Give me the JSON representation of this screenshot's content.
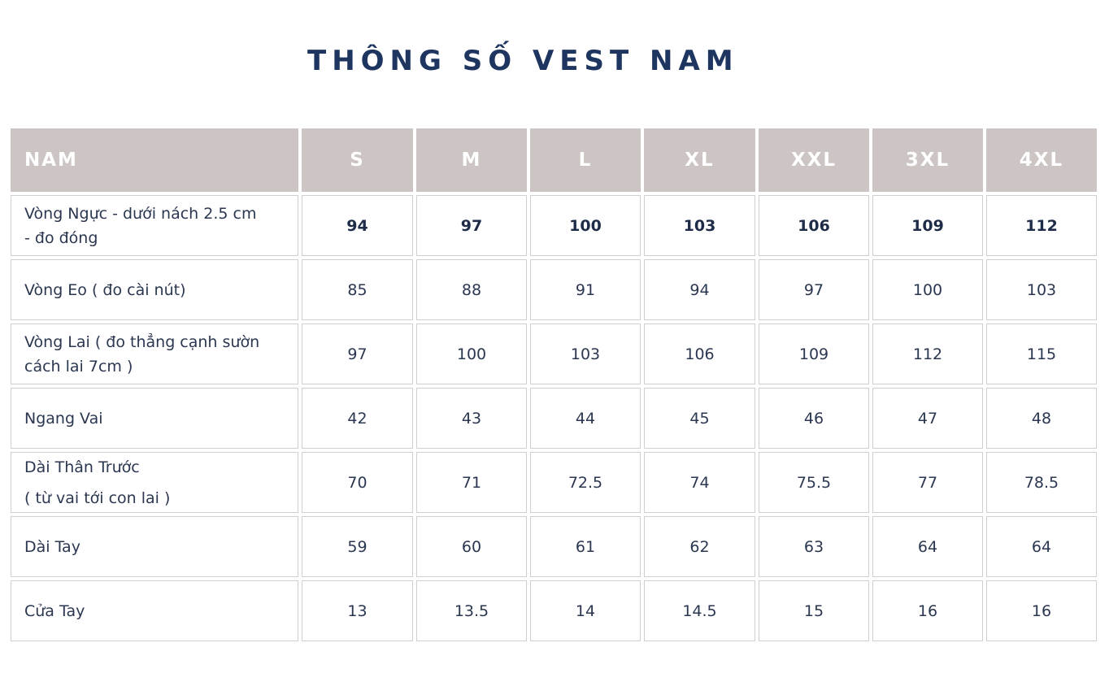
{
  "title": "THÔNG SỐ VEST NAM",
  "table": {
    "header": [
      "NAM",
      "S",
      "M",
      "L",
      "XL",
      "XXL",
      "3XL",
      "4XL"
    ],
    "rows": [
      {
        "label": [
          "Vòng Ngực - dưới nách 2.5 cm",
          "- đo đóng"
        ],
        "values": [
          "94",
          "97",
          "100",
          "103",
          "106",
          "109",
          "112"
        ]
      },
      {
        "label": [
          "Vòng Eo ( đo cài nút)"
        ],
        "values": [
          "85",
          "88",
          "91",
          "94",
          "97",
          "100",
          "103"
        ]
      },
      {
        "label": [
          "Vòng Lai ( đo thẳng cạnh sườn",
          "cách lai 7cm )"
        ],
        "values": [
          "97",
          "100",
          "103",
          "106",
          "109",
          "112",
          "115"
        ]
      },
      {
        "label": [
          "Ngang Vai"
        ],
        "values": [
          "42",
          "43",
          "44",
          "45",
          "46",
          "47",
          "48"
        ]
      },
      {
        "label": [
          "Dài Thân Trước",
          "( từ vai tới con lai )"
        ],
        "values": [
          "70",
          "71",
          "72.5",
          "74",
          "75.5",
          "77",
          "78.5"
        ]
      },
      {
        "label": [
          "Dài Tay"
        ],
        "values": [
          "59",
          "60",
          "61",
          "62",
          "63",
          "64",
          "64"
        ]
      },
      {
        "label": [
          "Cửa Tay"
        ],
        "values": [
          "13",
          "13.5",
          "14",
          "14.5",
          "15",
          "16",
          "16"
        ]
      }
    ]
  },
  "colors": {
    "title": "#1e3560",
    "header_bg": "#ccc5c3",
    "header_text": "#ffffff",
    "cell_border": "#cfcfcf"
  }
}
